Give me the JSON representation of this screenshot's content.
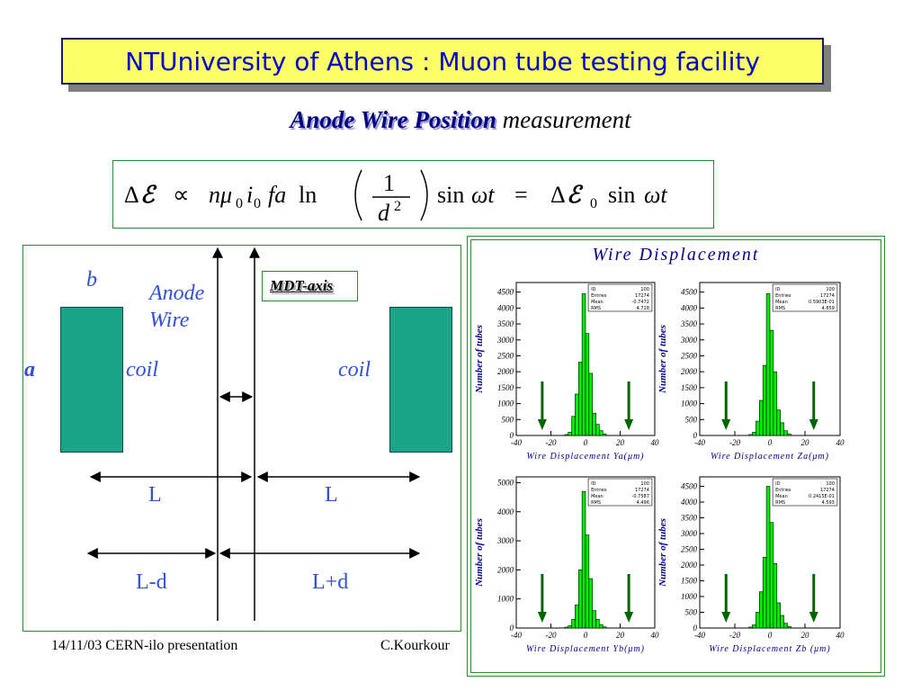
{
  "header": {
    "title": "NTUniversity of Athens : Muon tube testing facility",
    "subtitle_highlight": "Anode Wire Position",
    "subtitle_rest": " measurement"
  },
  "formula": {
    "delta": "Δ",
    "script_e": "ℰ",
    "propto": "∝",
    "n_mu": "nμ",
    "sub0": "0",
    "i": "i",
    "fa": "fa",
    "ln": "ln",
    "one": "1",
    "d": "d",
    "sq": "2",
    "sin": "sin",
    "omega_t": "ωt",
    "equals": "="
  },
  "diagram": {
    "label_b": "b",
    "label_anode": "Anode",
    "label_wire": "Wire",
    "label_a": "a",
    "coil_left": "coil",
    "coil_right": "coil",
    "mdt_axis": "MDT-axis",
    "L_left": "L",
    "L_right": "L",
    "L_minus_d": "L-d",
    "L_plus_d": "L+d",
    "colors": {
      "coil": "#1aa58a",
      "label": "#2f4fd8",
      "frame": "#2c8c2c"
    }
  },
  "footer": {
    "date_event": "14/11/03 CERN-ilo presentation",
    "author": "C.Kourkour"
  },
  "plots": {
    "main_title": "Wire Displacement",
    "colors": {
      "bar": "#00ee00",
      "arrow": "#006400",
      "fit": "#cc0000"
    },
    "stat_labels": [
      "ID",
      "Entries",
      "Mean",
      "RMS"
    ]
  },
  "chart_data": [
    {
      "type": "bar",
      "title": "",
      "xlabel": "Wire Displacement Ya(μm)",
      "ylabel": "Number of tubes",
      "xlim": [
        -40,
        40
      ],
      "ylim": [
        0,
        4800
      ],
      "yticks": [
        500,
        1000,
        1500,
        2000,
        2500,
        3000,
        3500,
        4000,
        4500
      ],
      "xticks": [
        -40,
        -20,
        0,
        20,
        40
      ],
      "bin_edges": [
        -12,
        -10,
        -8,
        -6,
        -4,
        -2,
        0,
        2,
        4,
        6,
        8,
        10,
        12
      ],
      "values": [
        30,
        100,
        600,
        1300,
        2300,
        4450,
        3200,
        1950,
        700,
        350,
        150,
        50
      ],
      "stats": [
        "100",
        "17274",
        "-0.7472",
        "4.718"
      ],
      "arrows_x": [
        -25,
        25
      ]
    },
    {
      "type": "bar",
      "title": "",
      "xlabel": "Wire Displacement Za(μm)",
      "ylabel": "Number of tubes",
      "xlim": [
        -40,
        40
      ],
      "ylim": [
        0,
        4800
      ],
      "yticks": [
        500,
        1000,
        1500,
        2000,
        2500,
        3000,
        3500,
        4000,
        4500
      ],
      "xticks": [
        -40,
        -20,
        0,
        20,
        40
      ],
      "bin_edges": [
        -12,
        -10,
        -8,
        -6,
        -4,
        -2,
        0,
        2,
        4,
        6,
        8,
        10,
        12
      ],
      "values": [
        30,
        100,
        450,
        1100,
        2200,
        4450,
        3300,
        2000,
        800,
        400,
        150,
        50
      ],
      "stats": [
        "100",
        "17274",
        "0.5903E-01",
        "4.859"
      ],
      "arrows_x": [
        -25,
        25
      ]
    },
    {
      "type": "bar",
      "title": "",
      "xlabel": "Wire Displacement Yb(μm)",
      "ylabel": "Number of tubes",
      "xlim": [
        -40,
        40
      ],
      "ylim": [
        0,
        5200
      ],
      "yticks": [
        1000,
        2000,
        3000,
        4000,
        5000
      ],
      "xticks": [
        -40,
        -20,
        0,
        20,
        40
      ],
      "bin_edges": [
        -12,
        -10,
        -8,
        -6,
        -4,
        -2,
        0,
        2,
        4,
        6,
        8,
        10,
        12
      ],
      "values": [
        30,
        80,
        300,
        800,
        2000,
        4700,
        3200,
        1700,
        600,
        300,
        120,
        40
      ],
      "stats": [
        "100",
        "17274",
        "-0.7587",
        "4.496"
      ],
      "arrows_x": [
        -25,
        25
      ]
    },
    {
      "type": "bar",
      "title": "",
      "xlabel": "Wire Displacement Zb (μm)",
      "ylabel": "Number of tubes",
      "xlim": [
        -40,
        40
      ],
      "ylim": [
        0,
        4800
      ],
      "yticks": [
        500,
        1000,
        1500,
        2000,
        2500,
        3000,
        3500,
        4000,
        4500
      ],
      "xticks": [
        -40,
        -20,
        0,
        20,
        40
      ],
      "bin_edges": [
        -12,
        -10,
        -8,
        -6,
        -4,
        -2,
        0,
        2,
        4,
        6,
        8,
        10,
        12
      ],
      "values": [
        30,
        100,
        500,
        1150,
        2250,
        4500,
        3350,
        2050,
        800,
        400,
        150,
        50
      ],
      "stats": [
        "100",
        "17274",
        "0.2415E-01",
        "4.593"
      ],
      "arrows_x": [
        -25,
        25
      ]
    }
  ]
}
